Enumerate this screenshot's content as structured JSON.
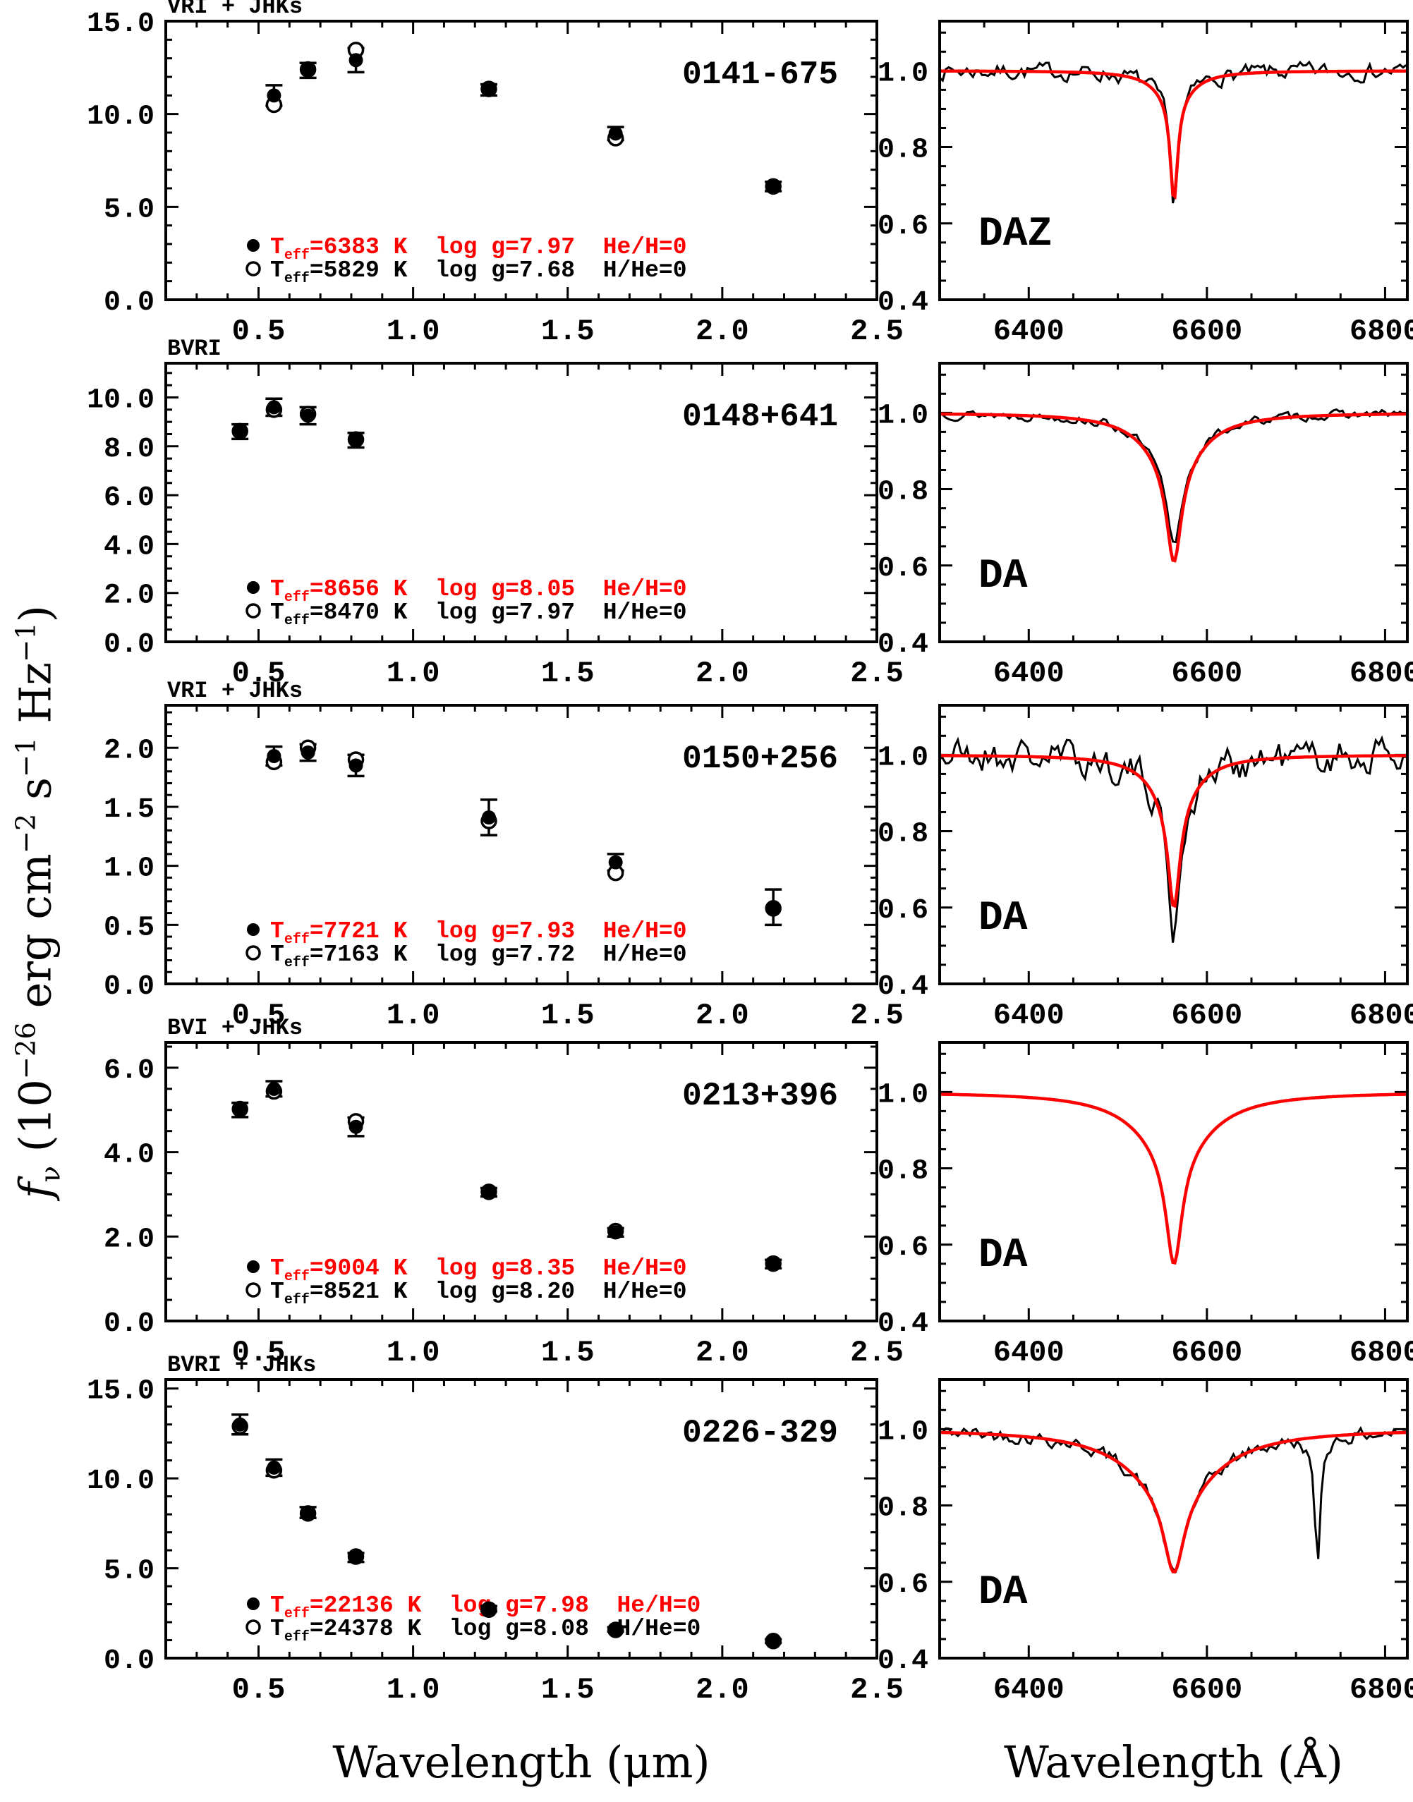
{
  "figure_type": "five-row two-column astronomy figure: photometric SEDs with model fits (left) and H-alpha line profiles with model fits (right)",
  "axis_titles": {
    "sed": "Wavelength (μm)",
    "spec": "Wavelength (Å)"
  },
  "ylabel_segments": [
    {
      "t": "f",
      "style": "italic"
    },
    {
      "t": "ν",
      "style": "sub"
    },
    {
      "t": " (10"
    },
    {
      "t": "−26",
      "style": "sup"
    },
    {
      "t": " erg cm"
    },
    {
      "t": "−2",
      "style": "sup"
    },
    {
      "t": " s"
    },
    {
      "t": "−1",
      "style": "sup"
    },
    {
      "t": " Hz"
    },
    {
      "t": "−1",
      "style": "sup"
    },
    {
      "t": ")"
    }
  ],
  "colors": {
    "model_red": "#ff0000",
    "data_black": "#000000",
    "background": "#ffffff"
  },
  "legend_labels": {
    "teff_prefix": "T",
    "teff_sub": "eff",
    "kelvin": "K",
    "logg_prefix": "log g"
  },
  "chart_data": {
    "shared": {
      "sed": {
        "type": "scatter",
        "xlim": [
          0.2,
          2.5
        ],
        "xticks": [
          0.5,
          1.0,
          1.5,
          2.0,
          2.5
        ],
        "xtick_labels": [
          "0.5",
          "1.0",
          "1.5",
          "2.0",
          "2.5"
        ],
        "xminor_step": 0.1,
        "xlabel": "Wavelength (μm)",
        "ylabel": "f_nu (10^-26 erg cm^-2 s^-1 Hz^-1)"
      },
      "spec": {
        "type": "line",
        "xlim": [
          6300,
          6825
        ],
        "xticks": [
          6400,
          6600,
          6800
        ],
        "xtick_labels": [
          "6400",
          "6600",
          "6800"
        ],
        "xminor_step": 50,
        "ylim": [
          0.4,
          1.13
        ],
        "yticks": [
          0.4,
          0.6,
          0.8,
          1.0
        ],
        "ytick_labels": [
          "0.4",
          "0.6",
          "0.8",
          "1.0"
        ],
        "yminor_step": 0.05,
        "halpha_center": 6563,
        "xlabel": "Wavelength (Å)"
      }
    },
    "rows": [
      {
        "object": "0141-675",
        "bands_label": "VRI + JHKs",
        "class_label": "DAZ",
        "sed": {
          "ylim": [
            0,
            15.0
          ],
          "yticks": [
            0,
            5,
            10,
            15
          ],
          "ytick_labels": [
            "0.0",
            "5.0",
            "10.0",
            "15.0"
          ],
          "yminor_step": 1,
          "filled": {
            "x": [
              0.55,
              0.66,
              0.815,
              1.245,
              1.655,
              2.165
            ],
            "y": [
              11.0,
              12.35,
              12.9,
              11.3,
              8.95,
              6.1
            ],
            "err": [
              0.55,
              0.4,
              0.65,
              0.3,
              0.35,
              0.25
            ]
          },
          "open": {
            "x": [
              0.55,
              0.66,
              0.815,
              1.245,
              1.655,
              2.165
            ],
            "y": [
              10.5,
              12.4,
              13.45,
              11.35,
              8.7,
              6.1
            ]
          },
          "legend": [
            {
              "marker": "filled",
              "color": "#ff0000",
              "teff": "6383",
              "logg": "7.97",
              "comp": "He/H=0"
            },
            {
              "marker": "open",
              "color": "#000000",
              "teff": "5829",
              "logg": "7.68",
              "comp": "H/He=0"
            }
          ]
        },
        "spectrum": {
          "show_data": true,
          "noise": 0.013,
          "seed": 7,
          "model_components": [
            {
              "depth": 0.27,
              "gamma": 5
            },
            {
              "depth": 0.07,
              "gamma": 25
            }
          ],
          "data_core_extra": {
            "depth": 0.015,
            "gamma": 4
          },
          "extra_narrow_line": null,
          "model_min": 0.66
        }
      },
      {
        "object": "0148+641",
        "bands_label": "BVRI",
        "class_label": "DA",
        "sed": {
          "ylim": [
            0,
            11.4
          ],
          "yticks": [
            0,
            2,
            4,
            6,
            8,
            10
          ],
          "ytick_labels": [
            "0.0",
            "2.0",
            "4.0",
            "6.0",
            "8.0",
            "10.0"
          ],
          "yminor_step": 0.5,
          "filled": {
            "x": [
              0.44,
              0.55,
              0.66,
              0.815
            ],
            "y": [
              8.6,
              9.6,
              9.25,
              8.25
            ],
            "err": [
              0.3,
              0.35,
              0.35,
              0.3
            ]
          },
          "open": {
            "x": [
              0.44,
              0.55,
              0.66,
              0.815
            ],
            "y": [
              8.62,
              9.5,
              9.32,
              8.28
            ]
          },
          "legend": [
            {
              "marker": "filled",
              "color": "#ff0000",
              "teff": "8656",
              "logg": "8.05",
              "comp": "He/H=0"
            },
            {
              "marker": "open",
              "color": "#000000",
              "teff": "8470",
              "logg": "7.97",
              "comp": "H/He=0"
            }
          ]
        },
        "spectrum": {
          "show_data": true,
          "noise": 0.007,
          "seed": 13,
          "model_components": [
            {
              "depth": 0.26,
              "gamma": 10
            },
            {
              "depth": 0.13,
              "gamma": 38
            }
          ],
          "data_core_extra": {
            "depth": -0.04,
            "gamma": 12
          },
          "extra_narrow_line": null,
          "model_min": 0.61
        }
      },
      {
        "object": "0150+256",
        "bands_label": "VRI + JHKs",
        "class_label": "DA",
        "sed": {
          "ylim": [
            0,
            2.36
          ],
          "yticks": [
            0,
            0.5,
            1.0,
            1.5,
            2.0
          ],
          "ytick_labels": [
            "0.0",
            "0.5",
            "1.0",
            "1.5",
            "2.0"
          ],
          "yminor_step": 0.1,
          "filled": {
            "x": [
              0.55,
              0.66,
              0.815,
              1.245,
              1.655,
              2.165
            ],
            "y": [
              1.93,
              1.96,
              1.85,
              1.41,
              1.03,
              0.65
            ],
            "err": [
              0.08,
              0.07,
              0.09,
              0.15,
              0.07,
              0.15
            ]
          },
          "open": {
            "x": [
              0.55,
              0.66,
              0.815,
              1.245,
              1.655,
              2.165
            ],
            "y": [
              1.88,
              2.0,
              1.9,
              1.38,
              0.94,
              0.64
            ]
          },
          "legend": [
            {
              "marker": "filled",
              "color": "#ff0000",
              "teff": "7721",
              "logg": "7.93",
              "comp": "He/H=0"
            },
            {
              "marker": "open",
              "color": "#000000",
              "teff": "7163",
              "logg": "7.72",
              "comp": "H/He=0"
            }
          ]
        },
        "spectrum": {
          "show_data": true,
          "noise": 0.028,
          "seed": 21,
          "model_components": [
            {
              "depth": 0.28,
              "gamma": 8
            },
            {
              "depth": 0.12,
              "gamma": 30
            }
          ],
          "data_core_extra": {
            "depth": 0.09,
            "gamma": 4
          },
          "extra_narrow_line": null,
          "model_min": 0.6
        }
      },
      {
        "object": "0213+396",
        "bands_label": "BVI + JHKs",
        "class_label": "DA",
        "sed": {
          "ylim": [
            0,
            6.6
          ],
          "yticks": [
            0,
            2,
            4,
            6
          ],
          "ytick_labels": [
            "0.0",
            "2.0",
            "4.0",
            "6.0"
          ],
          "yminor_step": 0.5,
          "filled": {
            "x": [
              0.44,
              0.55,
              0.815,
              1.245,
              1.655,
              2.165
            ],
            "y": [
              5.0,
              5.5,
              4.6,
              3.05,
              2.1,
              1.35
            ],
            "err": [
              0.17,
              0.18,
              0.22,
              0.1,
              0.1,
              0.1
            ]
          },
          "open": {
            "x": [
              0.44,
              0.55,
              0.815,
              1.245,
              1.655,
              2.165
            ],
            "y": [
              5.02,
              5.44,
              4.73,
              3.06,
              2.13,
              1.36
            ]
          },
          "legend": [
            {
              "marker": "filled",
              "color": "#ff0000",
              "teff": "9004",
              "logg": "8.35",
              "comp": "He/H=0"
            },
            {
              "marker": "open",
              "color": "#000000",
              "teff": "8521",
              "logg": "8.20",
              "comp": "H/He=0"
            }
          ]
        },
        "spectrum": {
          "show_data": false,
          "noise": 0,
          "seed": 1,
          "model_components": [
            {
              "depth": 0.3,
              "gamma": 11
            },
            {
              "depth": 0.15,
              "gamma": 50
            }
          ],
          "data_core_extra": {
            "depth": 0,
            "gamma": 1
          },
          "extra_narrow_line": null,
          "model_min": 0.55
        }
      },
      {
        "object": "0226-329",
        "bands_label": "BVRI + JHKs",
        "class_label": "DA",
        "sed": {
          "ylim": [
            0,
            15.5
          ],
          "yticks": [
            0,
            5,
            10,
            15
          ],
          "ytick_labels": [
            "0.0",
            "5.0",
            "10.0",
            "15.0"
          ],
          "yminor_step": 1,
          "filled": {
            "x": [
              0.44,
              0.55,
              0.66,
              0.815,
              1.245,
              1.655,
              2.165
            ],
            "y": [
              13.0,
              10.6,
              8.1,
              5.6,
              2.75,
              1.6,
              0.95
            ],
            "err": [
              0.55,
              0.45,
              0.3,
              0.25,
              0.15,
              0.12,
              0.1
            ]
          },
          "open": {
            "x": [
              0.44,
              0.55,
              0.66,
              0.815,
              1.245,
              1.655,
              2.165
            ],
            "y": [
              12.9,
              10.45,
              8.05,
              5.65,
              2.7,
              1.57,
              0.95
            ]
          },
          "legend": [
            {
              "marker": "filled",
              "color": "#ff0000",
              "teff": "22136",
              "logg": "7.98",
              "comp": "He/H=0"
            },
            {
              "marker": "open",
              "color": "#000000",
              "teff": "24378",
              "logg": "8.08",
              "comp": "H/He=0"
            }
          ]
        },
        "spectrum": {
          "show_data": true,
          "noise": 0.011,
          "seed": 42,
          "model_components": [
            {
              "depth": 0.215,
              "gamma": 14
            },
            {
              "depth": 0.16,
              "gamma": 60
            }
          ],
          "data_core_extra": {
            "depth": 0.01,
            "gamma": 6
          },
          "extra_narrow_line": {
            "center": 6724,
            "depth": 0.34,
            "gamma": 4
          },
          "model_min": 0.625
        }
      }
    ]
  }
}
